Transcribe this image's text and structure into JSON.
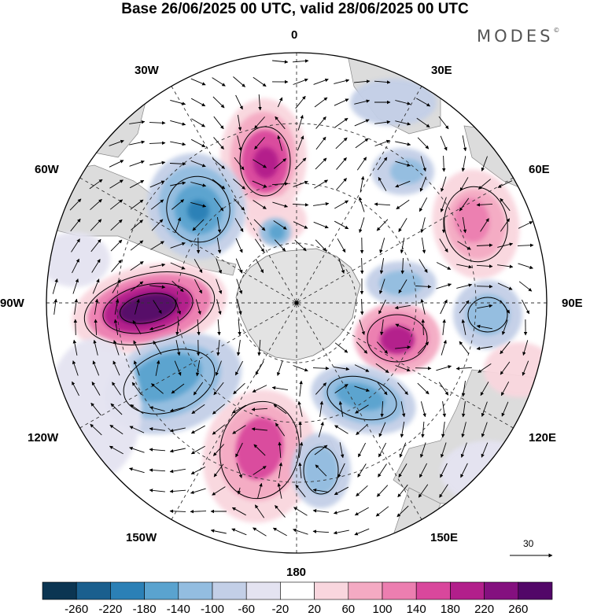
{
  "title": "Base 26/06/2025 00 UTC, valid 28/06/2025 00 UTC",
  "brand": "MODES",
  "brand_mark": "©",
  "longitude_labels": {
    "top": "0",
    "top_left": "30W",
    "top_right": "30E",
    "upper_left": "60W",
    "upper_right": "60E",
    "left": "90W",
    "right": "90E",
    "lower_left": "120W",
    "lower_right": "120E",
    "bottom_left": "150W",
    "bottom_right": "150E",
    "bottom": "180"
  },
  "reference_vector": "30",
  "colorbar": {
    "labels": [
      "-260",
      "-220",
      "-180",
      "-140",
      "-100",
      "-60",
      "-20",
      "20",
      "60",
      "100",
      "140",
      "180",
      "220",
      "260"
    ],
    "colors": [
      "#0b3552",
      "#1a5f8e",
      "#2b80b6",
      "#5aa3cf",
      "#93bde0",
      "#c3cfe7",
      "#e4e3f1",
      "#ffffff",
      "#f9d6de",
      "#f4aac3",
      "#ec7eb0",
      "#d9479c",
      "#b21f8b",
      "#84107f",
      "#520768"
    ]
  },
  "colors": {
    "continent": "#dedede",
    "land": "#d9d9d9",
    "grid": "#333333"
  }
}
